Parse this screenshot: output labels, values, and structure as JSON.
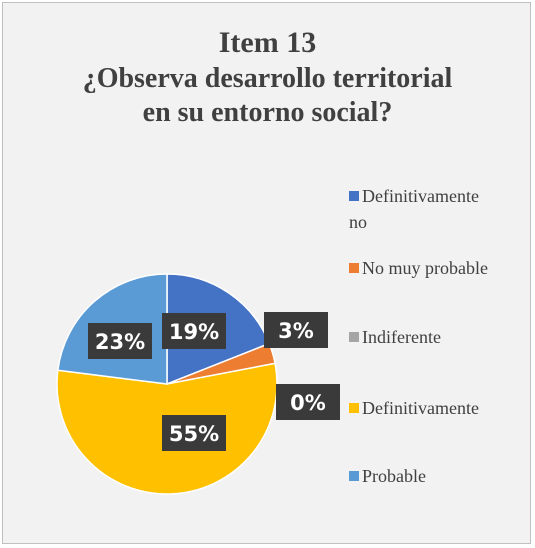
{
  "chart_data": {
    "type": "pie",
    "title": "Item 13",
    "subtitle_line1": "¿Observa desarrollo territorial",
    "subtitle_line2": "en su entorno social?",
    "categories": [
      "Definitivamente no",
      "No muy probable",
      "Indiferente",
      "Definitivamente",
      "Probable"
    ],
    "values": [
      19,
      3,
      0,
      55,
      23
    ],
    "data_labels": [
      "19%",
      "3%",
      "0%",
      "55%",
      "23%"
    ],
    "colors": [
      "#4472c4",
      "#ed7d31",
      "#a5a5a5",
      "#ffc000",
      "#5b9bd5"
    ],
    "legend_position": "right"
  },
  "legend": {
    "items": [
      {
        "label_line1": "Definitivamente",
        "label_line2": "no",
        "color": "#4472c4"
      },
      {
        "label_line1": "No muy probable",
        "color": "#ed7d31"
      },
      {
        "label_line1": "Indiferente",
        "color": "#a5a5a5"
      },
      {
        "label_line1": "Definitivamente",
        "color": "#ffc000"
      },
      {
        "label_line1": "Probable",
        "color": "#5b9bd5"
      }
    ]
  }
}
